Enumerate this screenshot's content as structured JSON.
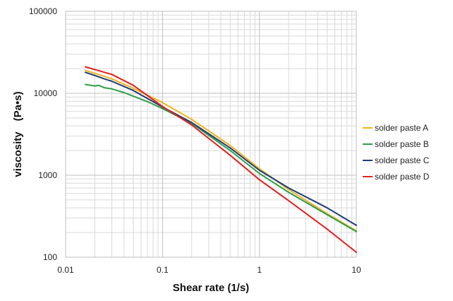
{
  "chart_data": {
    "type": "line",
    "title": "",
    "xlabel": "Shear rate (1/s)",
    "ylabel": "viscosity　(Pa•s)",
    "xscale": "log",
    "yscale": "log",
    "xlim": [
      0.01,
      10
    ],
    "ylim": [
      100,
      100000
    ],
    "x_ticks": [
      "0.01",
      "0.1",
      "1",
      "10"
    ],
    "y_ticks": [
      "100",
      "1000",
      "10000",
      "100000"
    ],
    "grid": true,
    "legend_position": "right",
    "series": [
      {
        "name": "solder paste A",
        "color": "#f2b21c",
        "points": [
          [
            0.016,
            19000
          ],
          [
            0.02,
            17500
          ],
          [
            0.03,
            15000
          ],
          [
            0.05,
            11500
          ],
          [
            0.1,
            7700
          ],
          [
            0.2,
            4800
          ],
          [
            0.5,
            2300
          ],
          [
            1,
            1200
          ],
          [
            2,
            670
          ],
          [
            5,
            340
          ],
          [
            10,
            210
          ]
        ]
      },
      {
        "name": "solder paste B",
        "color": "#2e9e48",
        "points": [
          [
            0.016,
            12800
          ],
          [
            0.02,
            12300
          ],
          [
            0.022,
            12500
          ],
          [
            0.025,
            11700
          ],
          [
            0.03,
            11300
          ],
          [
            0.04,
            10200
          ],
          [
            0.05,
            9200
          ],
          [
            0.07,
            7900
          ],
          [
            0.1,
            6500
          ],
          [
            0.2,
            4300
          ],
          [
            0.5,
            2000
          ],
          [
            1,
            1050
          ],
          [
            2,
            620
          ],
          [
            5,
            330
          ],
          [
            10,
            205
          ]
        ]
      },
      {
        "name": "solder paste C",
        "color": "#1f3b78",
        "points": [
          [
            0.016,
            18000
          ],
          [
            0.02,
            16500
          ],
          [
            0.025,
            15000
          ],
          [
            0.03,
            14000
          ],
          [
            0.05,
            10800
          ],
          [
            0.1,
            6800
          ],
          [
            0.2,
            4400
          ],
          [
            0.5,
            2150
          ],
          [
            1,
            1150
          ],
          [
            2,
            700
          ],
          [
            5,
            400
          ],
          [
            10,
            245
          ]
        ]
      },
      {
        "name": "solder paste D",
        "color": "#e02020",
        "points": [
          [
            0.016,
            21000
          ],
          [
            0.02,
            19500
          ],
          [
            0.03,
            17000
          ],
          [
            0.05,
            12500
          ],
          [
            0.1,
            6900
          ],
          [
            0.2,
            4100
          ],
          [
            0.5,
            1750
          ],
          [
            1,
            880
          ],
          [
            2,
            490
          ],
          [
            5,
            220
          ],
          [
            10,
            115
          ]
        ]
      }
    ]
  }
}
